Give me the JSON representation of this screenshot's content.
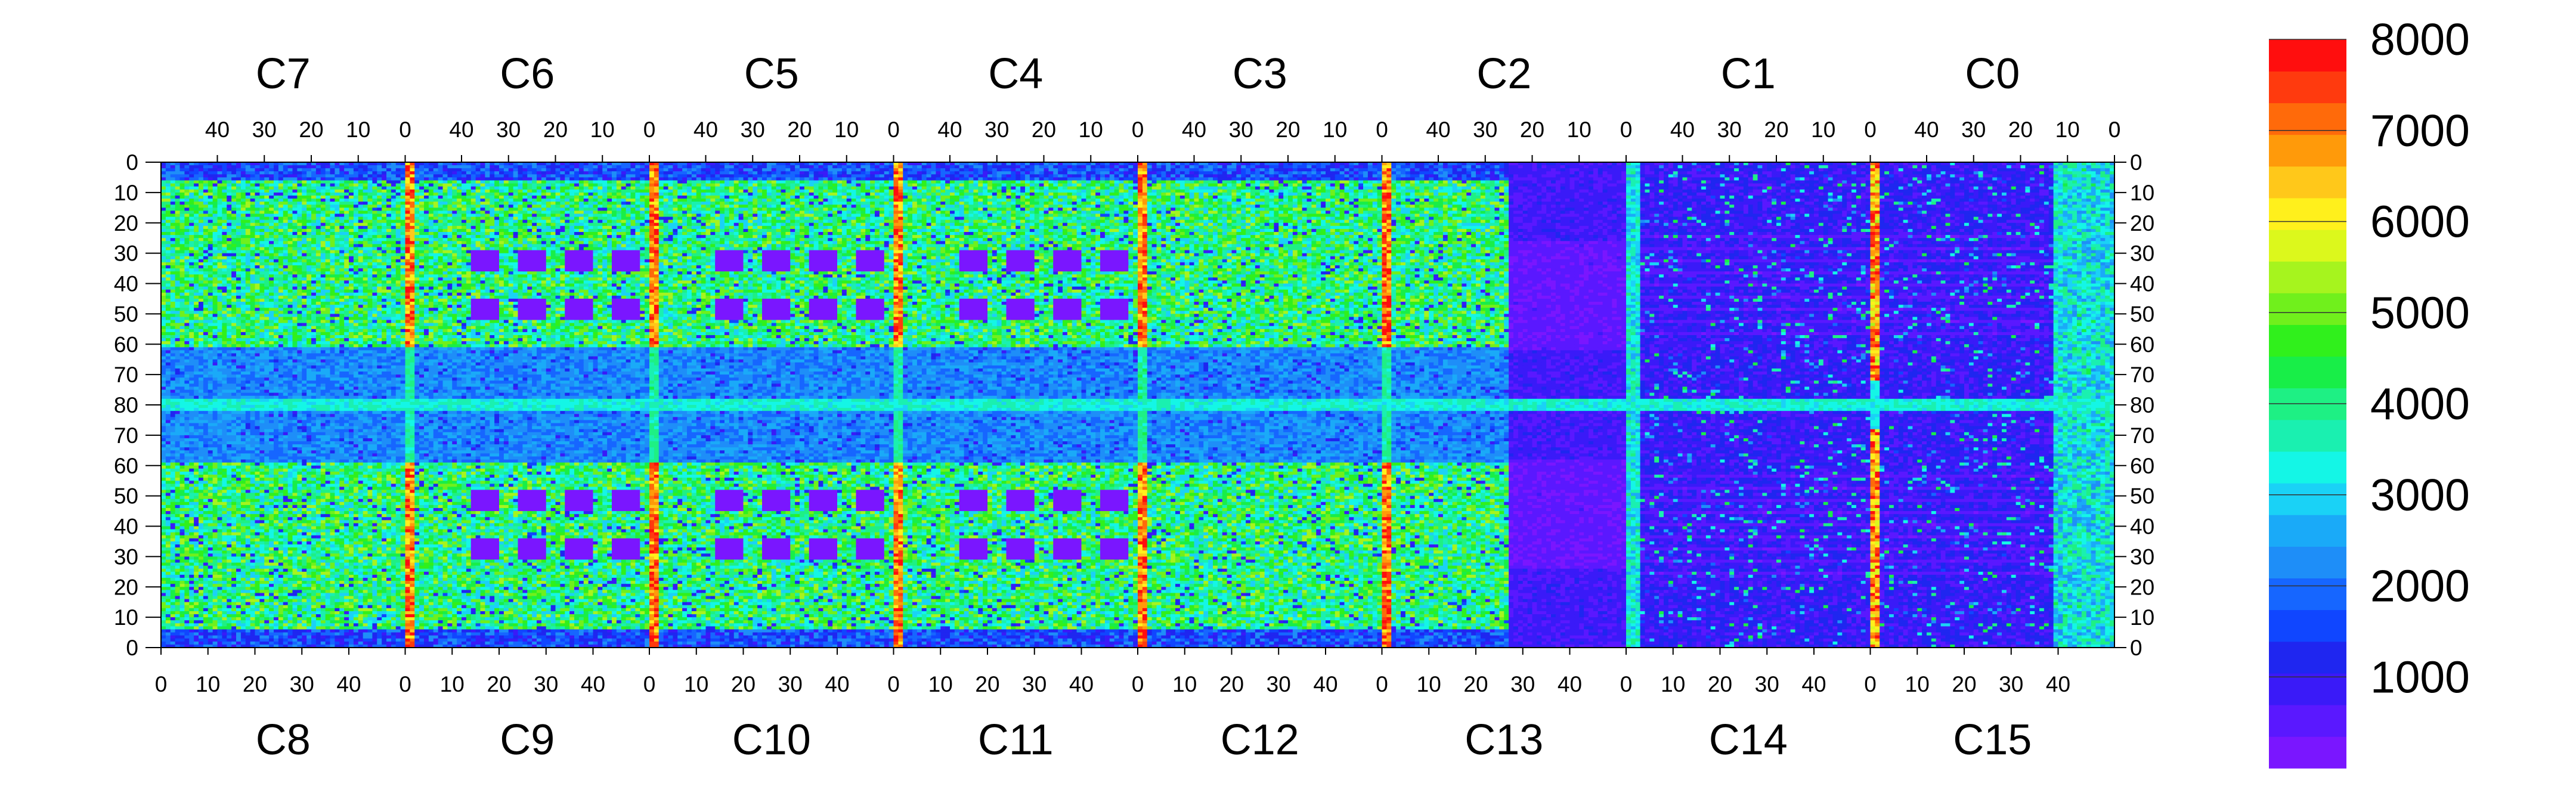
{
  "chart_data": {
    "type": "heatmap",
    "title": "",
    "xlabel": "",
    "ylabel": "",
    "chips_top": [
      "C7",
      "C6",
      "C5",
      "C4",
      "C3",
      "C2",
      "C1",
      "C0"
    ],
    "chips_bottom": [
      "C8",
      "C9",
      "C10",
      "C11",
      "C12",
      "C13",
      "C14",
      "C15"
    ],
    "top_x_ticks": [
      "40",
      "30",
      "20",
      "10",
      "0"
    ],
    "bottom_x_ticks": [
      "0",
      "10",
      "20",
      "30",
      "40"
    ],
    "top_x_tick_values": [
      40,
      30,
      20,
      10,
      0
    ],
    "bottom_x_tick_values": [
      0,
      10,
      20,
      30,
      40
    ],
    "columns_per_chip": 52,
    "rows_per_half": 80,
    "y_ticks": [
      "0",
      "10",
      "20",
      "30",
      "40",
      "50",
      "60",
      "70",
      "80",
      "70",
      "60",
      "50",
      "40",
      "30",
      "20",
      "10",
      "0"
    ],
    "colorbar": {
      "min": 0,
      "max": 8000,
      "ticks": [
        "1000",
        "2000",
        "3000",
        "4000",
        "5000",
        "6000",
        "7000",
        "8000"
      ],
      "tick_values": [
        1000,
        2000,
        3000,
        4000,
        5000,
        6000,
        7000,
        8000
      ],
      "levels": 20,
      "colors": [
        "#7a16ff",
        "#5a18ff",
        "#3a1af8",
        "#1f26f0",
        "#1046ff",
        "#1666ff",
        "#1e8ef8",
        "#1aaaf8",
        "#1ad2f6",
        "#14f6e6",
        "#1af0b0",
        "#1ef084",
        "#18ee48",
        "#30f01c",
        "#70f01c",
        "#a6f41e",
        "#dcf81c",
        "#fff01c",
        "#ffc81a",
        "#ff9a0a",
        "#ff6a0a",
        "#ff3a0e",
        "#ff0e0e"
      ]
    },
    "regions": [
      {
        "name": "low-activity-right-half",
        "chips": [
          "C1",
          "C0",
          "C14",
          "C15"
        ],
        "value": 700
      },
      {
        "name": "horizontal-strips-C2-C0",
        "value": 500
      },
      {
        "name": "hot-column-edges",
        "value": 7500
      },
      {
        "name": "central-row-80",
        "value": 3400
      }
    ]
  }
}
